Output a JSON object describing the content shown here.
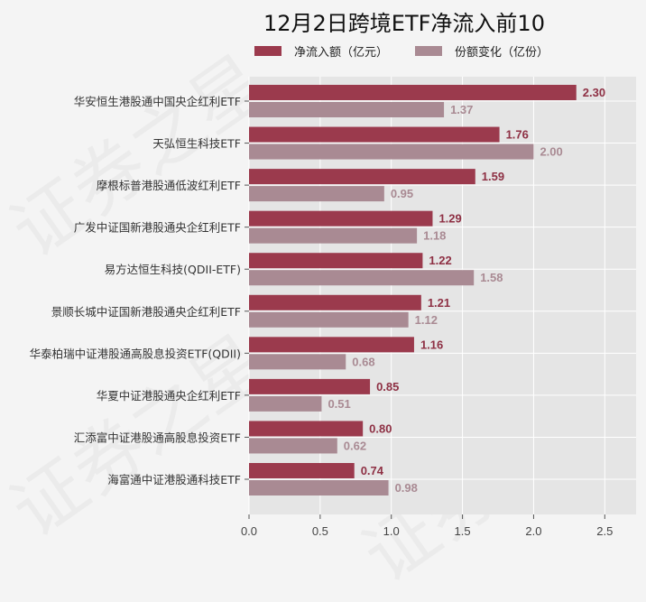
{
  "chart_data": {
    "type": "bar",
    "orientation": "horizontal",
    "title": "12月2日跨境ETF净流入前10",
    "categories": [
      "华安恒生港股通中国央企红利ETF",
      "天弘恒生科技ETF",
      "摩根标普港股通低波红利ETF",
      "广发中证国新港股通央企红利ETF",
      "易方达恒生科技(QDII-ETF)",
      "景顺长城中证国新港股通央企红利ETF",
      "华泰柏瑞中证港股通高股息投资ETF(QDII)",
      "华夏中证港股通央企红利ETF",
      "汇添富中证港股通高股息投资ETF",
      "海富通中证港股通科技ETF"
    ],
    "series": [
      {
        "name": "净流入额（亿元）",
        "color": "#9b3a4d",
        "label_color": "#8e3044",
        "values": [
          2.3,
          1.76,
          1.59,
          1.29,
          1.22,
          1.21,
          1.16,
          0.85,
          0.8,
          0.74
        ]
      },
      {
        "name": "份额变化（亿份）",
        "color": "#a98a93",
        "label_color": "#a98a93",
        "values": [
          1.37,
          2.0,
          0.95,
          1.18,
          1.58,
          1.12,
          0.68,
          0.51,
          0.62,
          0.98
        ]
      }
    ],
    "xlim": [
      0,
      2.72
    ],
    "xticks": [
      "0.0",
      "0.5",
      "1.0",
      "1.5",
      "2.0",
      "2.5"
    ],
    "grid": true,
    "legend_position": "top"
  },
  "watermark": "证券之星"
}
